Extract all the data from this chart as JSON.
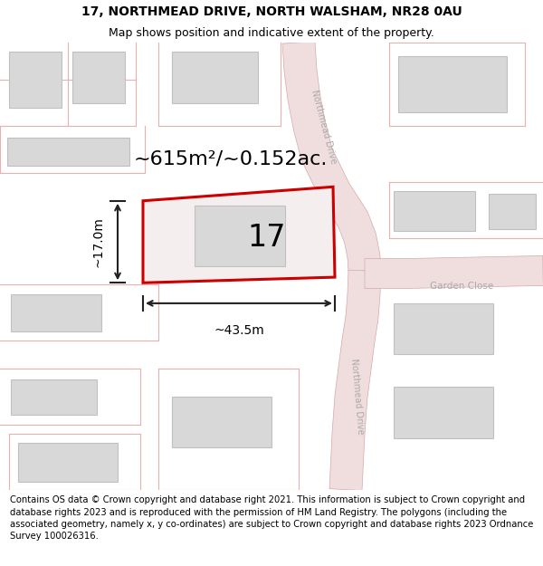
{
  "title_line1": "17, NORTHMEAD DRIVE, NORTH WALSHAM, NR28 0AU",
  "title_line2": "Map shows position and indicative extent of the property.",
  "footer_text": "Contains OS data © Crown copyright and database right 2021. This information is subject to Crown copyright and database rights 2023 and is reproduced with the permission of HM Land Registry. The polygons (including the associated geometry, namely x, y co-ordinates) are subject to Crown copyright and database rights 2023 Ordnance Survey 100026316.",
  "area_text": "~615m²/~0.152ac.",
  "plot_number": "17",
  "dim_width": "~43.5m",
  "dim_height": "~17.0m",
  "street_label_upper": "Northmead Drive",
  "street_label_lower": "Northmead Drive",
  "street_label_garden": "Garden Close",
  "road_fill": "#f0dede",
  "road_edge": "#d4a8a8",
  "building_fill": "#d8d8d8",
  "building_edge": "#c0c0c0",
  "plot_fill": "#f5eeee",
  "plot_edge": "#cc0000",
  "dim_color": "#222222",
  "parcel_color": "#e8b0b0",
  "title_fontsize": 10,
  "subtitle_fontsize": 9,
  "footer_fontsize": 7.2,
  "area_fontsize": 16,
  "plotnum_fontsize": 24,
  "dim_fontsize": 10,
  "street_fontsize": 7
}
